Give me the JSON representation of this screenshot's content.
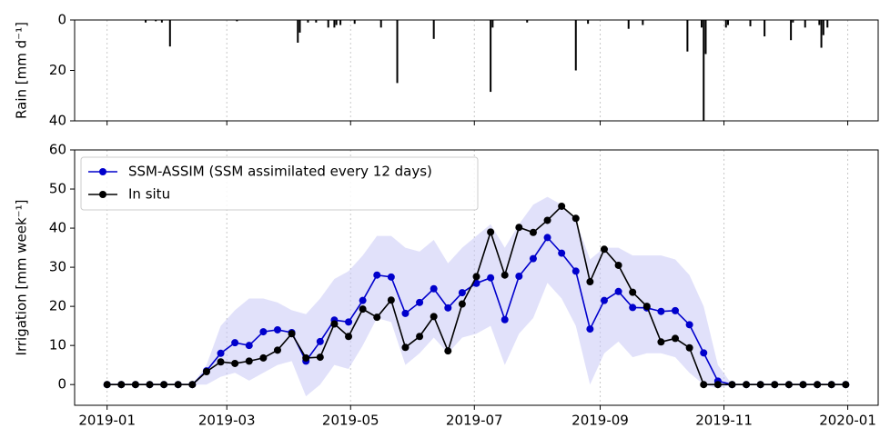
{
  "chart_data": [
    {
      "type": "bar",
      "ylabel": "Rain [mm d⁻¹]",
      "x": [
        19,
        24,
        27,
        31,
        64,
        94,
        95,
        99,
        103,
        109,
        112,
        113,
        115,
        122,
        135,
        143,
        161,
        189,
        190,
        207,
        231,
        237,
        257,
        264,
        286,
        293,
        294,
        295,
        305,
        306,
        317,
        324,
        337,
        338,
        344,
        351,
        352,
        353,
        355
      ],
      "values": [
        1,
        0.5,
        1,
        10.5,
        0.5,
        9,
        5,
        1,
        1,
        3,
        3,
        2,
        2,
        1.5,
        3,
        25,
        7.5,
        28.5,
        3,
        1,
        20,
        1.5,
        3.5,
        2,
        12.5,
        3,
        40,
        13.5,
        3,
        2,
        2.5,
        6.5,
        8,
        1,
        3,
        2,
        11,
        6,
        3
      ],
      "color": "#000000",
      "ylim": [
        0,
        40
      ],
      "yticks": [
        0,
        20,
        40
      ],
      "y_inverted": true,
      "sharex": 1,
      "grid": "x"
    },
    {
      "type": "line",
      "ylabel": "Irrigation [mm week⁻¹]",
      "x": [
        0,
        7,
        14,
        21,
        28,
        35,
        42,
        49,
        56,
        63,
        70,
        77,
        84,
        91,
        98,
        105,
        112,
        119,
        126,
        133,
        140,
        147,
        154,
        161,
        168,
        175,
        182,
        189,
        196,
        203,
        210,
        217,
        224,
        231,
        238,
        245,
        252,
        259,
        266,
        273,
        280,
        287,
        294,
        301,
        308,
        315,
        322,
        329,
        336,
        343,
        350,
        357,
        364
      ],
      "series": [
        {
          "name": "SSM-ASSIM (SSM assimilated every 12 days)",
          "color": "#0000cc",
          "values": [
            0,
            0,
            0,
            0,
            0,
            0,
            0,
            3.5,
            8,
            10.7,
            10,
            13.5,
            14,
            13.3,
            6,
            11,
            16.5,
            16,
            21.5,
            28,
            27.5,
            18.2,
            21,
            24.5,
            19.6,
            23.5,
            25.9,
            27.3,
            16.6,
            27.7,
            32.2,
            37.6,
            33.6,
            29,
            14.2,
            21.5,
            23.8,
            19.7,
            19.6,
            18.7,
            18.9,
            15.3,
            8.1,
            0.9,
            0,
            0,
            0,
            0,
            0,
            0,
            0,
            0,
            0
          ]
        },
        {
          "name": "In situ",
          "color": "#000000",
          "values": [
            0,
            0,
            0,
            0,
            0,
            0,
            0,
            3.3,
            5.8,
            5.4,
            6,
            6.8,
            8.8,
            13,
            6.8,
            7,
            15.5,
            12.3,
            19.3,
            17.2,
            21.6,
            9.5,
            12.3,
            17.4,
            8.6,
            20.6,
            27.6,
            39,
            28,
            40.2,
            38.9,
            42,
            45.6,
            42.5,
            26.3,
            34.6,
            30.5,
            23.6,
            20,
            10.9,
            11.8,
            9.4,
            0,
            0,
            0,
            0,
            0,
            0,
            0,
            0,
            0,
            0,
            0
          ]
        }
      ],
      "band": {
        "color": "#c8c8f5",
        "lower": [
          0,
          0,
          0,
          0,
          0,
          0,
          0,
          0,
          2,
          3,
          1,
          3,
          5,
          6,
          -3,
          0,
          5,
          4,
          10,
          17,
          16,
          5,
          8,
          12,
          8,
          12,
          13,
          15,
          5,
          13,
          17,
          26,
          22,
          15,
          0,
          8,
          11,
          7,
          8,
          8,
          7,
          3,
          0,
          -1,
          0,
          0,
          0,
          0,
          0,
          0,
          0,
          0,
          0
        ],
        "upper": [
          0,
          0,
          0,
          0,
          0,
          0,
          0,
          5,
          15,
          19,
          22,
          22,
          21,
          19,
          18,
          22,
          27,
          29,
          33,
          38,
          38,
          35,
          34,
          37,
          31,
          35,
          38,
          41,
          35,
          41,
          46,
          48,
          46,
          42,
          32,
          35,
          35,
          33,
          33,
          33,
          32,
          28,
          20,
          5,
          0,
          0,
          0,
          0,
          0,
          0,
          0,
          0,
          0
        ]
      },
      "xlim": [
        -16,
        380
      ],
      "xticks": [
        {
          "value": 0,
          "label": "2019-01"
        },
        {
          "value": 59,
          "label": "2019-03"
        },
        {
          "value": 120,
          "label": "2019-05"
        },
        {
          "value": 181,
          "label": "2019-07"
        },
        {
          "value": 243,
          "label": "2019-09"
        },
        {
          "value": 304,
          "label": "2019-11"
        },
        {
          "value": 365,
          "label": "2020-01"
        }
      ],
      "ylim": [
        -5.3,
        60
      ],
      "yticks": [
        0,
        10,
        20,
        30,
        40,
        50,
        60
      ],
      "grid": "x",
      "legend": "upper left"
    }
  ]
}
